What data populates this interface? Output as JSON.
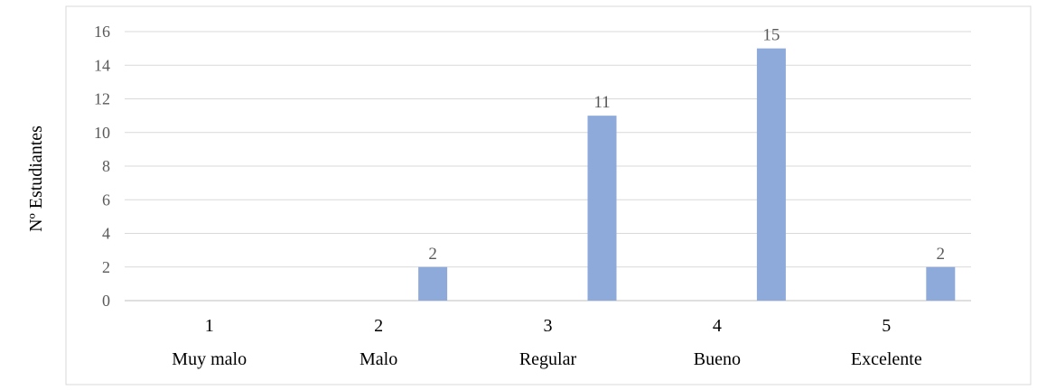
{
  "chart_data": {
    "type": "bar",
    "title": "",
    "xlabel": "",
    "ylabel": "Nº Estudiantes",
    "categories": [
      "1",
      "2",
      "3",
      "4",
      "5"
    ],
    "category_labels": [
      "Muy malo",
      "Malo",
      "Regular",
      "Bueno",
      "Excelente"
    ],
    "values": [
      0,
      2,
      11,
      15,
      2
    ],
    "data_labels": [
      "",
      "2",
      "11",
      "15",
      "2"
    ],
    "ylim": [
      0,
      16
    ],
    "yticks": [
      "0",
      "2",
      "4",
      "6",
      "8",
      "10",
      "12",
      "14",
      "16"
    ],
    "grid": true,
    "legend": "none",
    "colors": {
      "bar": "#8EAADB",
      "grid": "#D9D9D9",
      "axis": "#BFBFBF",
      "text": "#595959",
      "label": "#000000",
      "frame": "#D9D9D9"
    }
  }
}
